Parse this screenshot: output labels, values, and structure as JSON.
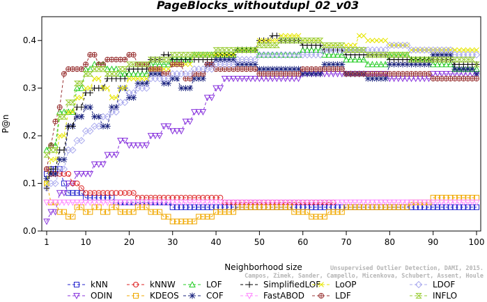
{
  "chart_data": {
    "type": "line",
    "title": "PageBlocks_withoutdupl_02_v03",
    "xlabel": "Neighborhood size",
    "ylabel": "P@n",
    "xlim": [
      1,
      100
    ],
    "ylim": [
      0,
      0.45
    ],
    "x_ticks": [
      1,
      10,
      20,
      30,
      40,
      50,
      60,
      70,
      80,
      90,
      100
    ],
    "x_tick_labels": [
      "1",
      "10",
      "20",
      "30",
      "40",
      "50",
      "60",
      "70",
      "80",
      "90",
      "100"
    ],
    "y_ticks": [
      0.0,
      0.1,
      0.2,
      0.3,
      0.4
    ],
    "y_tick_labels": [
      "0.0",
      "0.1",
      "0.2",
      "0.3",
      "0.4"
    ],
    "credit_lines": [
      "Unsupervised Outlier Detection, DAMI, 2015.",
      "Campos, Zimek, Sander, Campello, Micenkova, Schubert, Assent, Houle"
    ],
    "legend_position": "bottom",
    "series": [
      {
        "name": "kNN",
        "color": "#2222cc",
        "marker": "square",
        "points": [
          [
            1,
            0.12
          ],
          [
            2,
            0.13
          ],
          [
            3,
            0.13
          ],
          [
            5,
            0.1
          ],
          [
            6,
            0.08
          ],
          [
            9,
            0.08
          ],
          [
            10,
            0.07
          ],
          [
            15,
            0.07
          ],
          [
            17,
            0.06
          ],
          [
            28,
            0.06
          ],
          [
            30,
            0.05
          ],
          [
            100,
            0.05
          ]
        ]
      },
      {
        "name": "ODIN",
        "color": "#8833dd",
        "marker": "triangle-down",
        "points": [
          [
            1,
            0.02
          ],
          [
            2,
            0.04
          ],
          [
            4,
            0.08
          ],
          [
            6,
            0.1
          ],
          [
            8,
            0.12
          ],
          [
            12,
            0.14
          ],
          [
            15,
            0.16
          ],
          [
            18,
            0.19
          ],
          [
            20,
            0.18
          ],
          [
            25,
            0.2
          ],
          [
            28,
            0.22
          ],
          [
            30,
            0.21
          ],
          [
            33,
            0.23
          ],
          [
            35,
            0.25
          ],
          [
            38,
            0.28
          ],
          [
            40,
            0.3
          ],
          [
            42,
            0.32
          ],
          [
            50,
            0.32
          ],
          [
            60,
            0.33
          ],
          [
            70,
            0.33
          ],
          [
            80,
            0.32
          ],
          [
            90,
            0.33
          ],
          [
            100,
            0.33
          ]
        ]
      },
      {
        "name": "kNNW",
        "color": "#dd2222",
        "marker": "circle",
        "points": [
          [
            1,
            0.13
          ],
          [
            2,
            0.12
          ],
          [
            3,
            0.12
          ],
          [
            5,
            0.12
          ],
          [
            7,
            0.1
          ],
          [
            9,
            0.09
          ],
          [
            10,
            0.08
          ],
          [
            20,
            0.08
          ],
          [
            22,
            0.07
          ],
          [
            40,
            0.07
          ],
          [
            42,
            0.06
          ],
          [
            67,
            0.06
          ]
        ]
      },
      {
        "name": "KDEOS",
        "color": "#f0a800",
        "marker": "square",
        "points": [
          [
            1,
            0.1
          ],
          [
            2,
            0.06
          ],
          [
            4,
            0.04
          ],
          [
            6,
            0.03
          ],
          [
            8,
            0.05
          ],
          [
            10,
            0.04
          ],
          [
            12,
            0.05
          ],
          [
            14,
            0.04
          ],
          [
            16,
            0.05
          ],
          [
            18,
            0.04
          ],
          [
            20,
            0.04
          ],
          [
            22,
            0.05
          ],
          [
            25,
            0.04
          ],
          [
            28,
            0.03
          ],
          [
            30,
            0.02
          ],
          [
            34,
            0.02
          ],
          [
            36,
            0.03
          ],
          [
            40,
            0.04
          ],
          [
            45,
            0.05
          ],
          [
            50,
            0.05
          ],
          [
            55,
            0.05
          ],
          [
            58,
            0.04
          ],
          [
            62,
            0.03
          ],
          [
            66,
            0.04
          ],
          [
            70,
            0.05
          ],
          [
            80,
            0.05
          ],
          [
            85,
            0.06
          ],
          [
            90,
            0.07
          ],
          [
            100,
            0.07
          ]
        ]
      },
      {
        "name": "LOF",
        "color": "#22cc22",
        "marker": "triangle",
        "points": [
          [
            1,
            0.17
          ],
          [
            2,
            0.18
          ],
          [
            4,
            0.25
          ],
          [
            6,
            0.25
          ],
          [
            8,
            0.3
          ],
          [
            10,
            0.34
          ],
          [
            12,
            0.35
          ],
          [
            15,
            0.34
          ],
          [
            18,
            0.33
          ],
          [
            20,
            0.33
          ],
          [
            25,
            0.35
          ],
          [
            30,
            0.36
          ],
          [
            35,
            0.37
          ],
          [
            40,
            0.37
          ],
          [
            45,
            0.38
          ],
          [
            50,
            0.37
          ],
          [
            55,
            0.37
          ],
          [
            60,
            0.38
          ],
          [
            65,
            0.37
          ],
          [
            70,
            0.36
          ],
          [
            75,
            0.35
          ],
          [
            80,
            0.37
          ],
          [
            85,
            0.36
          ],
          [
            90,
            0.35
          ],
          [
            95,
            0.34
          ],
          [
            100,
            0.34
          ]
        ]
      },
      {
        "name": "COF",
        "color": "#1a237e",
        "marker": "asterisk",
        "points": [
          [
            1,
            0.11
          ],
          [
            2,
            0.12
          ],
          [
            4,
            0.15
          ],
          [
            6,
            0.22
          ],
          [
            8,
            0.24
          ],
          [
            10,
            0.26
          ],
          [
            12,
            0.24
          ],
          [
            14,
            0.22
          ],
          [
            16,
            0.26
          ],
          [
            18,
            0.3
          ],
          [
            20,
            0.28
          ],
          [
            22,
            0.31
          ],
          [
            25,
            0.33
          ],
          [
            28,
            0.31
          ],
          [
            30,
            0.32
          ],
          [
            32,
            0.3
          ],
          [
            35,
            0.32
          ],
          [
            38,
            0.35
          ],
          [
            40,
            0.36
          ],
          [
            45,
            0.35
          ],
          [
            50,
            0.34
          ],
          [
            55,
            0.34
          ],
          [
            60,
            0.33
          ],
          [
            65,
            0.35
          ],
          [
            70,
            0.33
          ],
          [
            75,
            0.32
          ],
          [
            80,
            0.35
          ],
          [
            85,
            0.35
          ],
          [
            90,
            0.37
          ],
          [
            95,
            0.34
          ],
          [
            100,
            0.33
          ]
        ]
      },
      {
        "name": "SimplifiedLOF",
        "color": "#000000",
        "marker": "plus",
        "points": [
          [
            1,
            0.09
          ],
          [
            2,
            0.13
          ],
          [
            4,
            0.17
          ],
          [
            6,
            0.22
          ],
          [
            8,
            0.26
          ],
          [
            10,
            0.29
          ],
          [
            12,
            0.3
          ],
          [
            15,
            0.32
          ],
          [
            20,
            0.34
          ],
          [
            25,
            0.36
          ],
          [
            28,
            0.37
          ],
          [
            30,
            0.36
          ],
          [
            35,
            0.36
          ],
          [
            40,
            0.37
          ],
          [
            45,
            0.38
          ],
          [
            50,
            0.4
          ],
          [
            53,
            0.41
          ],
          [
            55,
            0.4
          ],
          [
            60,
            0.39
          ],
          [
            65,
            0.38
          ],
          [
            70,
            0.37
          ],
          [
            75,
            0.37
          ],
          [
            80,
            0.36
          ],
          [
            85,
            0.36
          ],
          [
            90,
            0.36
          ],
          [
            95,
            0.35
          ],
          [
            100,
            0.35
          ]
        ]
      },
      {
        "name": "FastABOD",
        "color": "#ff88ff",
        "marker": "triangle-down",
        "points": [
          [
            1,
            0.06
          ],
          [
            100,
            0.06
          ]
        ]
      },
      {
        "name": "LoOP",
        "color": "#e6e600",
        "marker": "cross",
        "points": [
          [
            1,
            0.1
          ],
          [
            2,
            0.15
          ],
          [
            4,
            0.2
          ],
          [
            6,
            0.25
          ],
          [
            8,
            0.28
          ],
          [
            10,
            0.3
          ],
          [
            12,
            0.32
          ],
          [
            14,
            0.3
          ],
          [
            16,
            0.28
          ],
          [
            18,
            0.3
          ],
          [
            20,
            0.32
          ],
          [
            25,
            0.34
          ],
          [
            30,
            0.35
          ],
          [
            35,
            0.37
          ],
          [
            40,
            0.37
          ],
          [
            45,
            0.38
          ],
          [
            50,
            0.4
          ],
          [
            55,
            0.41
          ],
          [
            60,
            0.4
          ],
          [
            65,
            0.39
          ],
          [
            70,
            0.39
          ],
          [
            73,
            0.41
          ],
          [
            75,
            0.4
          ],
          [
            80,
            0.39
          ],
          [
            85,
            0.38
          ],
          [
            90,
            0.38
          ],
          [
            95,
            0.38
          ],
          [
            100,
            0.38
          ]
        ]
      },
      {
        "name": "LDF",
        "color": "#993333",
        "marker": "circle-plus",
        "points": [
          [
            1,
            0.13
          ],
          [
            2,
            0.18
          ],
          [
            3,
            0.23
          ],
          [
            4,
            0.26
          ],
          [
            5,
            0.33
          ],
          [
            6,
            0.34
          ],
          [
            8,
            0.34
          ],
          [
            10,
            0.35
          ],
          [
            11,
            0.37
          ],
          [
            13,
            0.35
          ],
          [
            15,
            0.36
          ],
          [
            18,
            0.36
          ],
          [
            20,
            0.37
          ],
          [
            22,
            0.35
          ],
          [
            25,
            0.34
          ],
          [
            28,
            0.33
          ],
          [
            30,
            0.35
          ],
          [
            33,
            0.32
          ],
          [
            35,
            0.33
          ],
          [
            38,
            0.35
          ],
          [
            40,
            0.34
          ],
          [
            45,
            0.34
          ],
          [
            50,
            0.33
          ],
          [
            55,
            0.33
          ],
          [
            60,
            0.34
          ],
          [
            65,
            0.34
          ],
          [
            70,
            0.33
          ],
          [
            75,
            0.33
          ],
          [
            80,
            0.33
          ],
          [
            85,
            0.33
          ],
          [
            90,
            0.32
          ],
          [
            95,
            0.32
          ],
          [
            100,
            0.32
          ]
        ]
      },
      {
        "name": "LDOF",
        "color": "#aaaaee",
        "marker": "diamond",
        "points": [
          [
            1,
            0.09
          ],
          [
            2,
            0.1
          ],
          [
            4,
            0.13
          ],
          [
            6,
            0.17
          ],
          [
            8,
            0.19
          ],
          [
            10,
            0.21
          ],
          [
            12,
            0.22
          ],
          [
            14,
            0.24
          ],
          [
            16,
            0.25
          ],
          [
            18,
            0.27
          ],
          [
            20,
            0.29
          ],
          [
            22,
            0.3
          ],
          [
            25,
            0.32
          ],
          [
            30,
            0.33
          ],
          [
            35,
            0.34
          ],
          [
            40,
            0.35
          ],
          [
            45,
            0.36
          ],
          [
            50,
            0.37
          ],
          [
            55,
            0.37
          ],
          [
            60,
            0.37
          ],
          [
            65,
            0.38
          ],
          [
            70,
            0.38
          ],
          [
            75,
            0.38
          ],
          [
            80,
            0.39
          ],
          [
            85,
            0.38
          ],
          [
            90,
            0.38
          ],
          [
            95,
            0.37
          ],
          [
            100,
            0.37
          ]
        ]
      },
      {
        "name": "INFLO",
        "color": "#99cc33",
        "marker": "hourglass",
        "points": [
          [
            1,
            0.16
          ],
          [
            2,
            0.17
          ],
          [
            4,
            0.24
          ],
          [
            6,
            0.27
          ],
          [
            8,
            0.31
          ],
          [
            10,
            0.33
          ],
          [
            12,
            0.34
          ],
          [
            15,
            0.33
          ],
          [
            18,
            0.34
          ],
          [
            20,
            0.35
          ],
          [
            25,
            0.36
          ],
          [
            30,
            0.37
          ],
          [
            35,
            0.37
          ],
          [
            40,
            0.38
          ],
          [
            45,
            0.38
          ],
          [
            50,
            0.39
          ],
          [
            55,
            0.4
          ],
          [
            60,
            0.4
          ],
          [
            65,
            0.39
          ],
          [
            70,
            0.38
          ],
          [
            75,
            0.37
          ],
          [
            80,
            0.37
          ],
          [
            85,
            0.36
          ],
          [
            90,
            0.36
          ],
          [
            95,
            0.36
          ],
          [
            100,
            0.35
          ]
        ]
      }
    ]
  }
}
